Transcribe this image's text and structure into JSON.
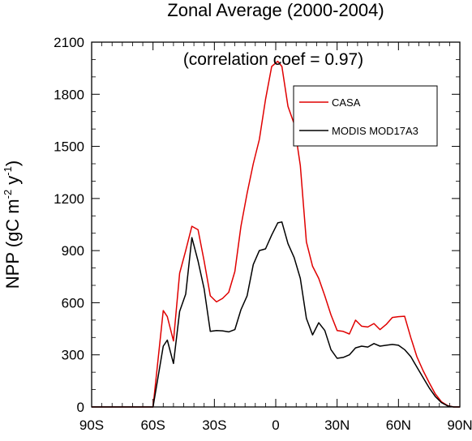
{
  "chart_data": {
    "type": "line",
    "title": "Zonal Average (2000-2004)",
    "annotation": "(correlation coef =  0.97)",
    "ylabel": {
      "base": "NPP (gC m",
      "sup1": "-2",
      "mid": " y",
      "sup2": "-1",
      "end": ")"
    },
    "xlabel": "",
    "xlim": [
      -90,
      90
    ],
    "ylim": [
      0,
      2100
    ],
    "xticks": [
      {
        "value": -90,
        "label": "90S"
      },
      {
        "value": -60,
        "label": "60S"
      },
      {
        "value": -30,
        "label": "30S"
      },
      {
        "value": 0,
        "label": "0"
      },
      {
        "value": 30,
        "label": "30N"
      },
      {
        "value": 60,
        "label": "60N"
      },
      {
        "value": 90,
        "label": "90N"
      }
    ],
    "yticks": [
      {
        "value": 0,
        "label": "0"
      },
      {
        "value": 300,
        "label": "300"
      },
      {
        "value": 600,
        "label": "600"
      },
      {
        "value": 900,
        "label": "900"
      },
      {
        "value": 1200,
        "label": "1200"
      },
      {
        "value": 1500,
        "label": "1500"
      },
      {
        "value": 1800,
        "label": "1800"
      },
      {
        "value": 2100,
        "label": "2100"
      }
    ],
    "legend_position": "top-right",
    "series": [
      {
        "name": "CASA",
        "color": "#e00000",
        "points": [
          [
            -90,
            0
          ],
          [
            -60,
            0
          ],
          [
            -55,
            555
          ],
          [
            -53,
            520
          ],
          [
            -50,
            380
          ],
          [
            -47,
            770
          ],
          [
            -44,
            900
          ],
          [
            -41,
            1040
          ],
          [
            -38,
            1020
          ],
          [
            -35,
            840
          ],
          [
            -32,
            640
          ],
          [
            -29,
            605
          ],
          [
            -26,
            625
          ],
          [
            -23,
            660
          ],
          [
            -20,
            780
          ],
          [
            -17,
            1040
          ],
          [
            -14,
            1230
          ],
          [
            -11,
            1400
          ],
          [
            -8,
            1540
          ],
          [
            -5,
            1770
          ],
          [
            -2,
            1960
          ],
          [
            1,
            1990
          ],
          [
            3,
            1960
          ],
          [
            6,
            1730
          ],
          [
            9,
            1630
          ],
          [
            12,
            1390
          ],
          [
            15,
            950
          ],
          [
            18,
            810
          ],
          [
            21,
            740
          ],
          [
            24,
            640
          ],
          [
            27,
            530
          ],
          [
            30,
            440
          ],
          [
            33,
            435
          ],
          [
            36,
            420
          ],
          [
            39,
            500
          ],
          [
            42,
            465
          ],
          [
            45,
            460
          ],
          [
            48,
            480
          ],
          [
            51,
            445
          ],
          [
            54,
            475
          ],
          [
            57,
            515
          ],
          [
            60,
            520
          ],
          [
            63,
            522
          ],
          [
            66,
            400
          ],
          [
            69,
            290
          ],
          [
            72,
            210
          ],
          [
            75,
            140
          ],
          [
            78,
            75
          ],
          [
            81,
            30
          ],
          [
            84,
            8
          ],
          [
            87,
            0
          ],
          [
            90,
            0
          ]
        ]
      },
      {
        "name": "MODIS MOD17A3",
        "color": "#000000",
        "points": [
          [
            -90,
            0
          ],
          [
            -60,
            0
          ],
          [
            -55,
            350
          ],
          [
            -53,
            385
          ],
          [
            -50,
            250
          ],
          [
            -47,
            550
          ],
          [
            -44,
            650
          ],
          [
            -41,
            975
          ],
          [
            -38,
            840
          ],
          [
            -35,
            680
          ],
          [
            -32,
            435
          ],
          [
            -29,
            440
          ],
          [
            -26,
            438
          ],
          [
            -23,
            432
          ],
          [
            -20,
            445
          ],
          [
            -17,
            560
          ],
          [
            -14,
            640
          ],
          [
            -11,
            820
          ],
          [
            -8,
            900
          ],
          [
            -5,
            910
          ],
          [
            -2,
            990
          ],
          [
            1,
            1060
          ],
          [
            3,
            1065
          ],
          [
            6,
            940
          ],
          [
            9,
            860
          ],
          [
            12,
            740
          ],
          [
            15,
            510
          ],
          [
            18,
            415
          ],
          [
            21,
            485
          ],
          [
            24,
            440
          ],
          [
            27,
            330
          ],
          [
            30,
            280
          ],
          [
            33,
            285
          ],
          [
            36,
            300
          ],
          [
            39,
            340
          ],
          [
            42,
            350
          ],
          [
            45,
            345
          ],
          [
            48,
            365
          ],
          [
            51,
            350
          ],
          [
            54,
            355
          ],
          [
            57,
            360
          ],
          [
            60,
            355
          ],
          [
            63,
            330
          ],
          [
            66,
            290
          ],
          [
            69,
            230
          ],
          [
            72,
            170
          ],
          [
            75,
            110
          ],
          [
            78,
            60
          ],
          [
            81,
            25
          ],
          [
            84,
            6
          ],
          [
            87,
            0
          ],
          [
            90,
            0
          ]
        ]
      }
    ]
  }
}
